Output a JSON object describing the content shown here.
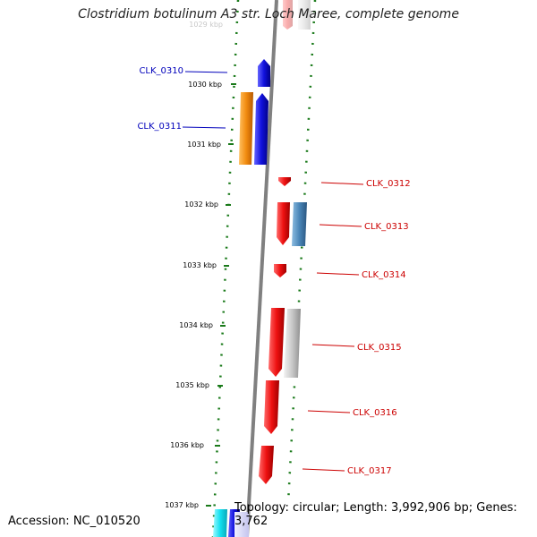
{
  "title": "Clostridium botulinum A3 str. Loch Maree, complete genome",
  "footer": {
    "accession": "Accession: NC_010520",
    "topology": "Topology: circular; Length: 3,992,906 bp; Genes: 3,762"
  },
  "ruler_ticks": [
    "1029 kbp",
    "1030 kbp",
    "1031 kbp",
    "1032 kbp",
    "1033 kbp",
    "1034 kbp",
    "1035 kbp",
    "1036 kbp",
    "1037 kbp"
  ],
  "gene_labels": {
    "left": [
      "CLK_0310",
      "CLK_0311"
    ],
    "right": [
      "CLK_0312",
      "CLK_0313",
      "CLK_0314",
      "CLK_0315",
      "CLK_0316",
      "CLK_0317"
    ]
  },
  "colors": {
    "forward_cds": "#ee1111",
    "reverse_cds": "#1111dd",
    "orange_feature": "#f28c10",
    "steelblue_feature": "#4a86b8",
    "grey_feature": "#c8c8c8",
    "cyan_feature": "#11e0f0",
    "left_label": "#0000bb",
    "right_label": "#cc0000",
    "backbone": "#808080",
    "tick": "#1a7a1a"
  }
}
